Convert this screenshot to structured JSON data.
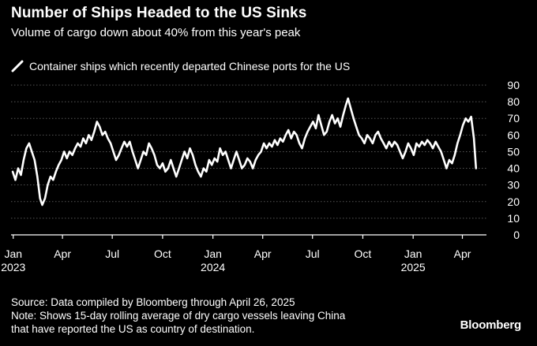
{
  "header": {
    "title": "Number of Ships Headed to the US Sinks",
    "subtitle": "Volume of cargo down about 40% from this year's peak"
  },
  "colors": {
    "background": "#000000",
    "text": "#ffffff",
    "series": "#ffffff",
    "grid": "#555555",
    "axis": "#ffffff"
  },
  "chart_data": {
    "type": "line",
    "title": "Number of Ships Headed to the US Sinks",
    "subtitle": "Volume of cargo down about 40% from this year's peak",
    "xlabel": "",
    "ylabel": "",
    "ylim": [
      0,
      90
    ],
    "y_ticks": [
      0,
      10,
      20,
      30,
      40,
      50,
      60,
      70,
      80,
      90
    ],
    "y_axis_side": "right",
    "grid": "horizontal dotted",
    "legend_placement": "top-left",
    "x_ticks": [
      {
        "date": "2023-01-01",
        "label": "Jan",
        "year": "2023"
      },
      {
        "date": "2023-04-01",
        "label": "Apr",
        "year": ""
      },
      {
        "date": "2023-07-01",
        "label": "Jul",
        "year": ""
      },
      {
        "date": "2023-10-01",
        "label": "Oct",
        "year": ""
      },
      {
        "date": "2024-01-01",
        "label": "Jan",
        "year": "2024"
      },
      {
        "date": "2024-04-01",
        "label": "Apr",
        "year": ""
      },
      {
        "date": "2024-07-01",
        "label": "Jul",
        "year": ""
      },
      {
        "date": "2024-10-01",
        "label": "Oct",
        "year": ""
      },
      {
        "date": "2025-01-01",
        "label": "Jan",
        "year": "2025"
      },
      {
        "date": "2025-04-01",
        "label": "Apr",
        "year": ""
      }
    ],
    "x_range": [
      "2022-12-28",
      "2025-05-15"
    ],
    "series": [
      {
        "name": "Container ships which recently departed Chinese ports for the US",
        "color": "#ffffff",
        "points": [
          [
            "2022-12-31",
            38
          ],
          [
            "2023-01-05",
            33
          ],
          [
            "2023-01-10",
            40
          ],
          [
            "2023-01-15",
            36
          ],
          [
            "2023-01-20",
            45
          ],
          [
            "2023-01-25",
            52
          ],
          [
            "2023-01-30",
            55
          ],
          [
            "2023-02-04",
            50
          ],
          [
            "2023-02-09",
            45
          ],
          [
            "2023-02-14",
            35
          ],
          [
            "2023-02-19",
            22
          ],
          [
            "2023-02-23",
            18
          ],
          [
            "2023-02-28",
            22
          ],
          [
            "2023-03-05",
            30
          ],
          [
            "2023-03-10",
            35
          ],
          [
            "2023-03-15",
            33
          ],
          [
            "2023-03-20",
            38
          ],
          [
            "2023-03-25",
            42
          ],
          [
            "2023-03-30",
            45
          ],
          [
            "2023-04-04",
            50
          ],
          [
            "2023-04-09",
            46
          ],
          [
            "2023-04-14",
            50
          ],
          [
            "2023-04-19",
            48
          ],
          [
            "2023-04-24",
            52
          ],
          [
            "2023-04-29",
            55
          ],
          [
            "2023-05-04",
            53
          ],
          [
            "2023-05-09",
            58
          ],
          [
            "2023-05-14",
            55
          ],
          [
            "2023-05-19",
            60
          ],
          [
            "2023-05-24",
            57
          ],
          [
            "2023-05-29",
            62
          ],
          [
            "2023-06-03",
            68
          ],
          [
            "2023-06-08",
            65
          ],
          [
            "2023-06-13",
            60
          ],
          [
            "2023-06-18",
            62
          ],
          [
            "2023-06-23",
            58
          ],
          [
            "2023-06-28",
            55
          ],
          [
            "2023-07-03",
            50
          ],
          [
            "2023-07-08",
            45
          ],
          [
            "2023-07-13",
            48
          ],
          [
            "2023-07-18",
            52
          ],
          [
            "2023-07-23",
            56
          ],
          [
            "2023-07-28",
            53
          ],
          [
            "2023-08-02",
            56
          ],
          [
            "2023-08-07",
            50
          ],
          [
            "2023-08-12",
            45
          ],
          [
            "2023-08-17",
            40
          ],
          [
            "2023-08-22",
            45
          ],
          [
            "2023-08-27",
            50
          ],
          [
            "2023-09-01",
            48
          ],
          [
            "2023-09-06",
            55
          ],
          [
            "2023-09-11",
            52
          ],
          [
            "2023-09-16",
            48
          ],
          [
            "2023-09-21",
            42
          ],
          [
            "2023-09-26",
            40
          ],
          [
            "2023-10-01",
            43
          ],
          [
            "2023-10-06",
            38
          ],
          [
            "2023-10-11",
            40
          ],
          [
            "2023-10-16",
            45
          ],
          [
            "2023-10-21",
            40
          ],
          [
            "2023-10-26",
            35
          ],
          [
            "2023-10-31",
            40
          ],
          [
            "2023-11-05",
            45
          ],
          [
            "2023-11-10",
            50
          ],
          [
            "2023-11-15",
            46
          ],
          [
            "2023-11-20",
            52
          ],
          [
            "2023-11-25",
            48
          ],
          [
            "2023-11-30",
            42
          ],
          [
            "2023-12-05",
            38
          ],
          [
            "2023-12-10",
            35
          ],
          [
            "2023-12-15",
            40
          ],
          [
            "2023-12-20",
            38
          ],
          [
            "2023-12-25",
            45
          ],
          [
            "2023-12-30",
            42
          ],
          [
            "2024-01-04",
            46
          ],
          [
            "2024-01-09",
            44
          ],
          [
            "2024-01-14",
            52
          ],
          [
            "2024-01-19",
            48
          ],
          [
            "2024-01-24",
            50
          ],
          [
            "2024-01-29",
            45
          ],
          [
            "2024-02-03",
            40
          ],
          [
            "2024-02-08",
            45
          ],
          [
            "2024-02-13",
            50
          ],
          [
            "2024-02-18",
            45
          ],
          [
            "2024-02-23",
            40
          ],
          [
            "2024-02-28",
            42
          ],
          [
            "2024-03-04",
            46
          ],
          [
            "2024-03-09",
            44
          ],
          [
            "2024-03-14",
            40
          ],
          [
            "2024-03-19",
            45
          ],
          [
            "2024-03-24",
            48
          ],
          [
            "2024-03-29",
            50
          ],
          [
            "2024-04-03",
            55
          ],
          [
            "2024-04-08",
            52
          ],
          [
            "2024-04-13",
            55
          ],
          [
            "2024-04-18",
            53
          ],
          [
            "2024-04-23",
            57
          ],
          [
            "2024-04-28",
            54
          ],
          [
            "2024-05-03",
            58
          ],
          [
            "2024-05-08",
            56
          ],
          [
            "2024-05-13",
            60
          ],
          [
            "2024-05-18",
            63
          ],
          [
            "2024-05-23",
            58
          ],
          [
            "2024-05-28",
            62
          ],
          [
            "2024-06-02",
            60
          ],
          [
            "2024-06-07",
            55
          ],
          [
            "2024-06-12",
            52
          ],
          [
            "2024-06-17",
            58
          ],
          [
            "2024-06-22",
            62
          ],
          [
            "2024-06-27",
            65
          ],
          [
            "2024-07-02",
            68
          ],
          [
            "2024-07-07",
            64
          ],
          [
            "2024-07-12",
            72
          ],
          [
            "2024-07-17",
            66
          ],
          [
            "2024-07-22",
            60
          ],
          [
            "2024-07-27",
            62
          ],
          [
            "2024-08-01",
            68
          ],
          [
            "2024-08-06",
            72
          ],
          [
            "2024-08-11",
            67
          ],
          [
            "2024-08-16",
            70
          ],
          [
            "2024-08-21",
            65
          ],
          [
            "2024-08-26",
            72
          ],
          [
            "2024-08-31",
            78
          ],
          [
            "2024-09-04",
            82
          ],
          [
            "2024-09-09",
            76
          ],
          [
            "2024-09-14",
            70
          ],
          [
            "2024-09-19",
            65
          ],
          [
            "2024-09-24",
            60
          ],
          [
            "2024-09-29",
            58
          ],
          [
            "2024-10-04",
            55
          ],
          [
            "2024-10-09",
            60
          ],
          [
            "2024-10-14",
            58
          ],
          [
            "2024-10-19",
            55
          ],
          [
            "2024-10-24",
            60
          ],
          [
            "2024-10-29",
            62
          ],
          [
            "2024-11-03",
            58
          ],
          [
            "2024-11-08",
            55
          ],
          [
            "2024-11-13",
            52
          ],
          [
            "2024-11-18",
            56
          ],
          [
            "2024-11-23",
            53
          ],
          [
            "2024-11-28",
            56
          ],
          [
            "2024-12-03",
            54
          ],
          [
            "2024-12-08",
            50
          ],
          [
            "2024-12-13",
            46
          ],
          [
            "2024-12-18",
            50
          ],
          [
            "2024-12-23",
            55
          ],
          [
            "2024-12-28",
            52
          ],
          [
            "2025-01-02",
            48
          ],
          [
            "2025-01-07",
            55
          ],
          [
            "2025-01-12",
            53
          ],
          [
            "2025-01-17",
            56
          ],
          [
            "2025-01-22",
            54
          ],
          [
            "2025-01-27",
            57
          ],
          [
            "2025-02-01",
            55
          ],
          [
            "2025-02-06",
            52
          ],
          [
            "2025-02-11",
            56
          ],
          [
            "2025-02-16",
            53
          ],
          [
            "2025-02-21",
            50
          ],
          [
            "2025-02-26",
            45
          ],
          [
            "2025-03-03",
            40
          ],
          [
            "2025-03-08",
            45
          ],
          [
            "2025-03-13",
            43
          ],
          [
            "2025-03-18",
            48
          ],
          [
            "2025-03-23",
            55
          ],
          [
            "2025-03-28",
            60
          ],
          [
            "2025-04-02",
            66
          ],
          [
            "2025-04-07",
            70
          ],
          [
            "2025-04-12",
            68
          ],
          [
            "2025-04-17",
            71
          ],
          [
            "2025-04-22",
            58
          ],
          [
            "2025-04-26",
            40
          ]
        ]
      }
    ]
  },
  "footer": {
    "source": "Source: Data compiled by Bloomberg through April 26, 2025",
    "note_line1": "Note: Shows 15-day rolling average of dry cargo vessels leaving China",
    "note_line2": "that have reported the US as country of destination."
  },
  "brand": "Bloomberg"
}
